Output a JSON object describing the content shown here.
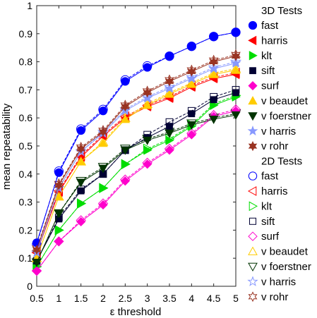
{
  "chart_data": {
    "type": "line",
    "xlabel": "ε threshold",
    "ylabel": "mean repeatability",
    "xlim": [
      0.5,
      5
    ],
    "ylim": [
      0,
      1
    ],
    "xticks": [
      "0.5",
      "1",
      "1.5",
      "2",
      "2.5",
      "3",
      "3.5",
      "4",
      "4.5",
      "5"
    ],
    "yticks": [
      "0",
      "0.1",
      "0.2",
      "0.3",
      "0.4",
      "0.5",
      "0.6",
      "0.7",
      "0.8",
      "0.9",
      "1"
    ],
    "grid": false,
    "legend_position": "right",
    "x": [
      0.5,
      1,
      1.5,
      2,
      2.5,
      3,
      3.5,
      4,
      4.5,
      5
    ],
    "groups": [
      {
        "title": "3D Tests",
        "series": [
          {
            "name": "fast",
            "color": "#0000ff",
            "marker": "circle",
            "filled": true,
            "values": [
              0.155,
              0.405,
              0.555,
              0.625,
              0.73,
              0.78,
              0.82,
              0.855,
              0.89,
              0.905
            ]
          },
          {
            "name": "harris",
            "color": "#ff0000",
            "marker": "triangle-left",
            "filled": true,
            "values": [
              0.12,
              0.335,
              0.46,
              0.535,
              0.6,
              0.64,
              0.67,
              0.71,
              0.74,
              0.755
            ]
          },
          {
            "name": "klt",
            "color": "#00dd00",
            "marker": "triangle-right",
            "filled": true,
            "values": [
              0.07,
              0.2,
              0.295,
              0.35,
              0.435,
              0.485,
              0.52,
              0.57,
              0.645,
              0.675
            ]
          },
          {
            "name": "sift",
            "color": "#000033",
            "marker": "square",
            "filled": true,
            "values": [
              0.09,
              0.24,
              0.34,
              0.4,
              0.485,
              0.53,
              0.57,
              0.615,
              0.665,
              0.69
            ]
          },
          {
            "name": "surf",
            "color": "#ff00cc",
            "marker": "diamond",
            "filled": true,
            "values": [
              0.055,
              0.16,
              0.23,
              0.29,
              0.375,
              0.435,
              0.485,
              0.54,
              0.605,
              0.625
            ]
          },
          {
            "name": "v beaudet",
            "color": "#ffcc00",
            "marker": "triangle-up",
            "filled": true,
            "values": [
              0.1,
              0.32,
              0.445,
              0.51,
              0.595,
              0.645,
              0.685,
              0.72,
              0.755,
              0.77
            ]
          },
          {
            "name": "v foerstner",
            "color": "#003300",
            "marker": "triangle-down",
            "filled": true,
            "values": [
              0.085,
              0.26,
              0.37,
              0.42,
              0.485,
              0.52,
              0.545,
              0.575,
              0.595,
              0.61
            ]
          },
          {
            "name": "v harris",
            "color": "#8899ff",
            "marker": "star",
            "filled": true,
            "values": [
              0.12,
              0.35,
              0.48,
              0.545,
              0.625,
              0.67,
              0.705,
              0.74,
              0.775,
              0.795
            ]
          },
          {
            "name": "v rohr",
            "color": "#993322",
            "marker": "hexagram",
            "filled": true,
            "values": [
              0.13,
              0.36,
              0.49,
              0.55,
              0.64,
              0.69,
              0.73,
              0.765,
              0.8,
              0.82
            ]
          }
        ]
      },
      {
        "title": "2D Tests",
        "series": [
          {
            "name": "fast",
            "color": "#0000ff",
            "marker": "circle",
            "filled": false,
            "values": [
              0.15,
              0.41,
              0.56,
              0.63,
              0.735,
              0.785,
              0.82,
              0.855,
              0.89,
              0.905
            ]
          },
          {
            "name": "harris",
            "color": "#ff0000",
            "marker": "triangle-left",
            "filled": false,
            "values": [
              0.12,
              0.34,
              0.465,
              0.54,
              0.605,
              0.645,
              0.675,
              0.715,
              0.745,
              0.76
            ]
          },
          {
            "name": "klt",
            "color": "#00dd00",
            "marker": "triangle-right",
            "filled": false,
            "values": [
              0.07,
              0.2,
              0.295,
              0.35,
              0.435,
              0.49,
              0.525,
              0.575,
              0.65,
              0.68
            ]
          },
          {
            "name": "sift",
            "color": "#000033",
            "marker": "square",
            "filled": false,
            "values": [
              0.09,
              0.245,
              0.345,
              0.4,
              0.485,
              0.54,
              0.585,
              0.625,
              0.675,
              0.7
            ]
          },
          {
            "name": "surf",
            "color": "#ff00cc",
            "marker": "diamond",
            "filled": false,
            "values": [
              0.055,
              0.16,
              0.235,
              0.295,
              0.38,
              0.44,
              0.49,
              0.545,
              0.61,
              0.63
            ]
          },
          {
            "name": "v beaudet",
            "color": "#ffcc00",
            "marker": "triangle-up",
            "filled": false,
            "values": [
              0.1,
              0.32,
              0.445,
              0.515,
              0.6,
              0.65,
              0.69,
              0.725,
              0.76,
              0.775
            ]
          },
          {
            "name": "v foerstner",
            "color": "#003300",
            "marker": "triangle-down",
            "filled": false,
            "values": [
              0.085,
              0.26,
              0.375,
              0.425,
              0.49,
              0.525,
              0.55,
              0.58,
              0.6,
              0.615
            ]
          },
          {
            "name": "v harris",
            "color": "#8899ff",
            "marker": "star",
            "filled": false,
            "values": [
              0.12,
              0.35,
              0.48,
              0.55,
              0.63,
              0.675,
              0.71,
              0.745,
              0.78,
              0.8
            ]
          },
          {
            "name": "v rohr",
            "color": "#993322",
            "marker": "hexagram",
            "filled": false,
            "values": [
              0.135,
              0.365,
              0.495,
              0.555,
              0.645,
              0.695,
              0.735,
              0.77,
              0.805,
              0.825
            ]
          }
        ]
      }
    ]
  }
}
